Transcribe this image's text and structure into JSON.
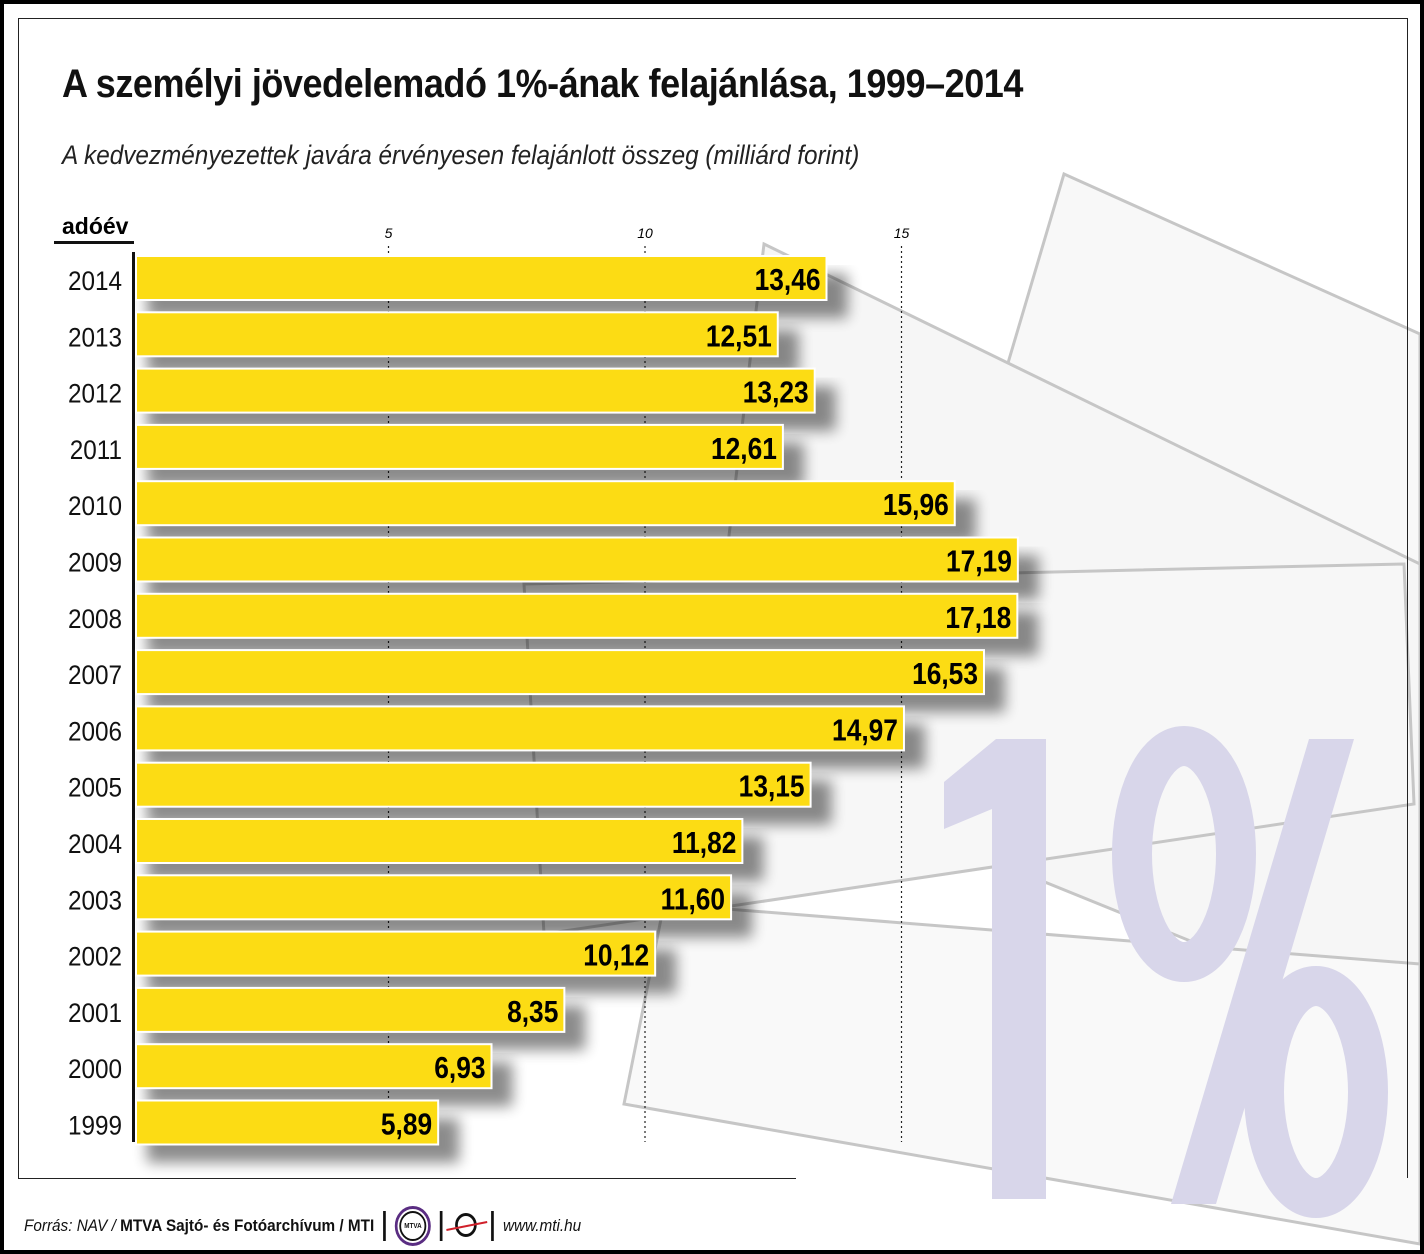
{
  "title": "A személyi jövedelemadó 1%-ának felajánlása, 1999–2014",
  "subtitle": "A kedvezményezettek javára érvényesen felajánlott összeg (milliárd forint)",
  "background_text": "1%",
  "footer": {
    "source_prefix": "Forrás: NAV / ",
    "source_bold": "MTVA Sajtó- és Fotóarchívum / MTI",
    "mtva_logo": "MTVA",
    "url": "www.mti.hu"
  },
  "colors": {
    "bar": "#fcdc14",
    "percent_bg": "#d8d6ea"
  },
  "chart_data": {
    "type": "bar",
    "orientation": "horizontal",
    "title": "A személyi jövedelemadó 1%-ának felajánlása, 1999–2014",
    "ylabel": "adóév",
    "xlabel": "milliárd forint",
    "xticks": [
      5,
      10,
      15
    ],
    "xlim": [
      0,
      20
    ],
    "grid": "dotted vertical",
    "categories": [
      "2014",
      "2013",
      "2012",
      "2011",
      "2010",
      "2009",
      "2008",
      "2007",
      "2006",
      "2005",
      "2004",
      "2003",
      "2002",
      "2001",
      "2000",
      "1999"
    ],
    "values": [
      13.46,
      12.51,
      13.23,
      12.61,
      15.96,
      17.19,
      17.18,
      16.53,
      14.97,
      13.15,
      11.82,
      11.6,
      10.12,
      8.35,
      6.93,
      5.89
    ],
    "labels": [
      "13,46",
      "12,51",
      "13,23",
      "12,61",
      "15,96",
      "17,19",
      "17,18",
      "16,53",
      "14,97",
      "13,15",
      "11,82",
      "11,60",
      "10,12",
      "8,35",
      "6,93",
      "5,89"
    ]
  }
}
